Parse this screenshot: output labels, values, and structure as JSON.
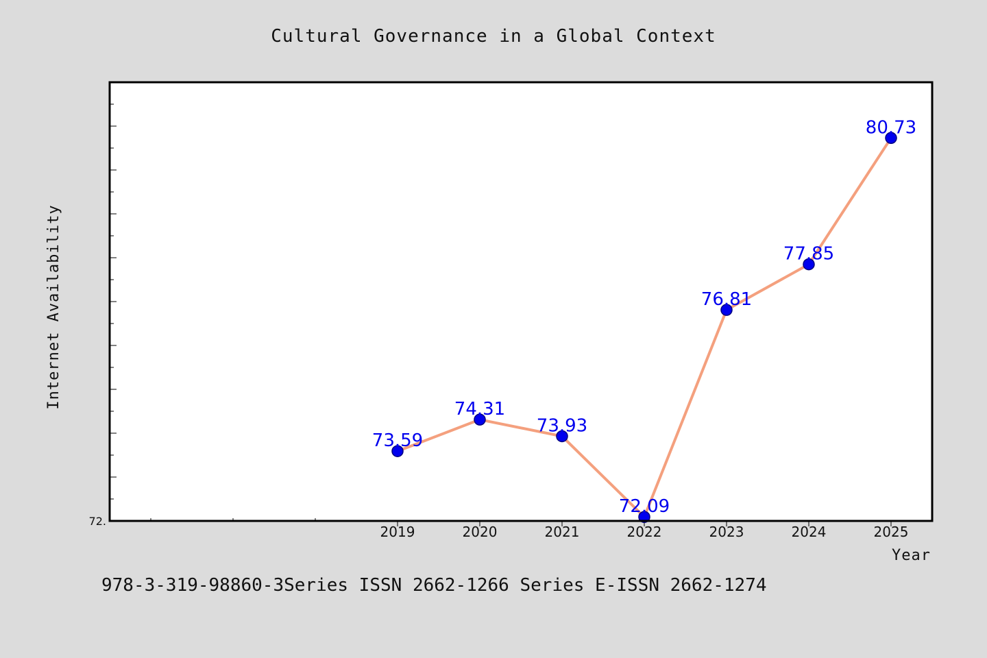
{
  "chart_data": {
    "type": "line",
    "title": "Cultural Governance in a Global Context",
    "xlabel": "Year",
    "ylabel": "Internet Availability",
    "categories": [
      "2019",
      "2020",
      "2021",
      "2022",
      "2023",
      "2024",
      "2025"
    ],
    "series": [
      {
        "values": [
          73.59,
          74.31,
          73.93,
          72.09,
          76.81,
          77.85,
          80.73
        ],
        "data_labels": [
          "73.59",
          "74.31",
          "73.93",
          "72.09",
          "76.81",
          "77.85",
          "80.73"
        ]
      }
    ],
    "y_tick_labels": [
      "72."
    ],
    "ylim": [
      72.0,
      82.0
    ],
    "grid": false,
    "legend": "none"
  },
  "footer": {
    "text": "978-3-319-98860-3Series ISSN 2662-1266 Series E-ISSN 2662-1274"
  },
  "colors": {
    "background": "#dcdcdc",
    "plot_background": "#ffffff",
    "line": "#f4a07e",
    "marker_fill": "#0000ee",
    "marker_stroke": "#000080",
    "data_label": "#0000ee",
    "axis": "#000000"
  }
}
